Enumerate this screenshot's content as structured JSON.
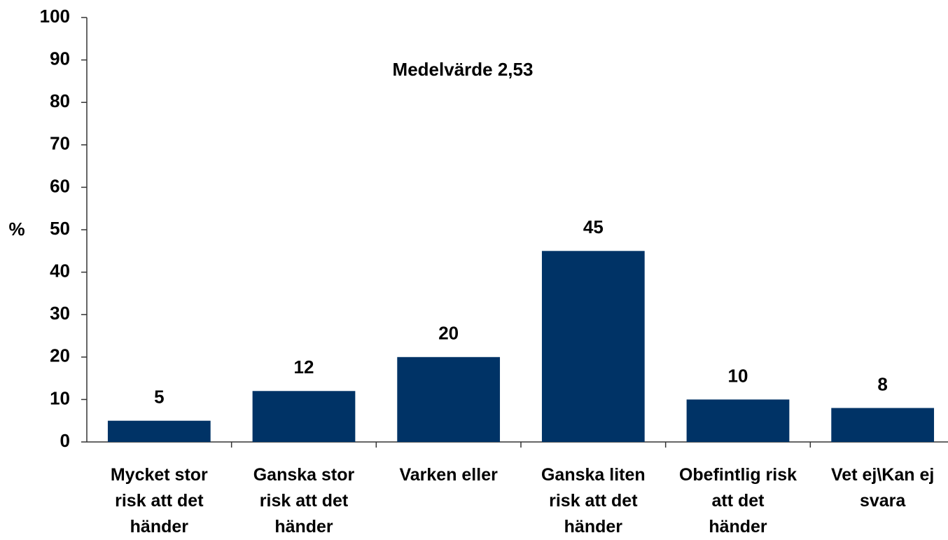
{
  "chart_data": {
    "type": "bar",
    "annotation": "Medelvärde 2,53",
    "y_label": "%",
    "categories": [
      "Mycket stor\nrisk att det\nhänder",
      "Ganska stor\nrisk att det\nhänder",
      "Varken eller",
      "Ganska liten\nrisk att det\nhänder",
      "Obefintlig risk\natt det\nhänder",
      "Vet ej\\Kan ej\nsvara"
    ],
    "values": [
      5,
      12,
      20,
      45,
      10,
      8
    ],
    "color": "#003366",
    "ylim": [
      0,
      100
    ],
    "yticks": [
      0,
      10,
      20,
      30,
      40,
      50,
      60,
      70,
      80,
      90,
      100
    ],
    "grid": false
  }
}
